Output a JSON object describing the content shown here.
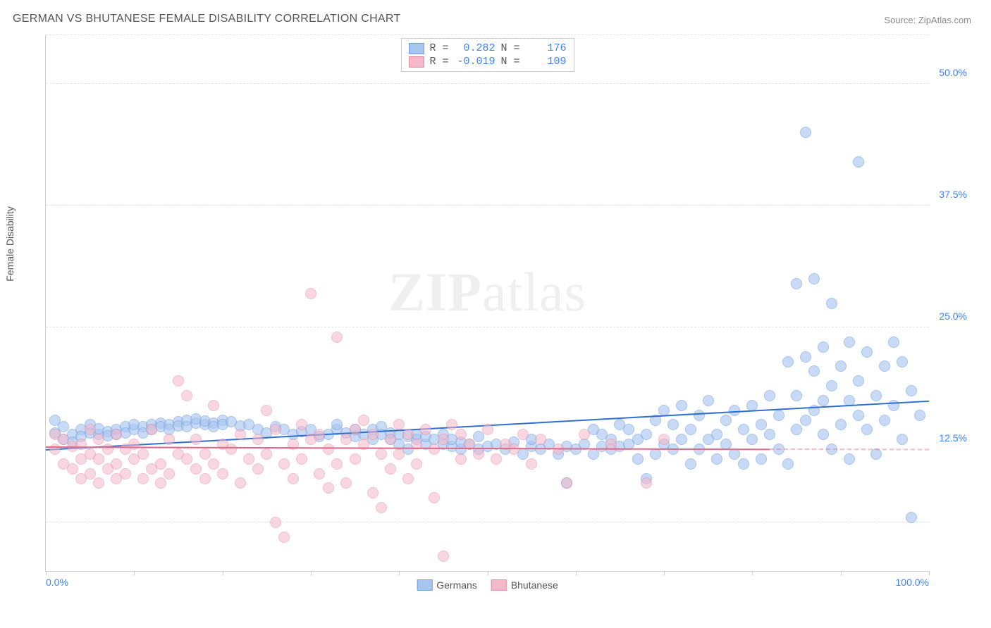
{
  "title": "GERMAN VS BHUTANESE FEMALE DISABILITY CORRELATION CHART",
  "source": "Source: ZipAtlas.com",
  "watermark": {
    "bold": "ZIP",
    "rest": "atlas"
  },
  "chart": {
    "type": "scatter",
    "y_axis_label": "Female Disability",
    "xlim": [
      0,
      100
    ],
    "ylim": [
      0,
      55
    ],
    "x_tick_positions": [
      0,
      10,
      20,
      30,
      40,
      50,
      60,
      70,
      80,
      90,
      100
    ],
    "x_tick_labels": {
      "0": "0.0%",
      "100": "100.0%"
    },
    "y_ticks": [
      {
        "v": 12.5,
        "label": "12.5%"
      },
      {
        "v": 25.0,
        "label": "25.0%"
      },
      {
        "v": 37.5,
        "label": "37.5%"
      },
      {
        "v": 50.0,
        "label": "50.0%"
      }
    ],
    "grid_positions": [
      5,
      12.5,
      25,
      37.5,
      50,
      55
    ],
    "grid_color": "#e5e5e5",
    "background_color": "#ffffff",
    "series": [
      {
        "name": "Germans",
        "marker_fill": "#a8c5f0",
        "marker_stroke": "#6fa0e0",
        "marker_opacity": 0.62,
        "marker_radius": 8,
        "trend": {
          "color": "#2f6fd0",
          "width": 2,
          "y_at_x0": 12.5,
          "y_at_x100": 17.5,
          "solid_until_x": 100
        },
        "stats": {
          "R": "0.282",
          "N": "176"
        },
        "points": [
          [
            1,
            15.5
          ],
          [
            1,
            14.2
          ],
          [
            2,
            13.5
          ],
          [
            2,
            14.8
          ],
          [
            3,
            14.0
          ],
          [
            3,
            13.2
          ],
          [
            4,
            14.5
          ],
          [
            4,
            13.8
          ],
          [
            5,
            14.2
          ],
          [
            5,
            15.0
          ],
          [
            6,
            14.0
          ],
          [
            6,
            14.6
          ],
          [
            7,
            14.3
          ],
          [
            7,
            13.9
          ],
          [
            8,
            14.5
          ],
          [
            8,
            14.0
          ],
          [
            9,
            14.8
          ],
          [
            9,
            14.2
          ],
          [
            10,
            14.5
          ],
          [
            10,
            15.0
          ],
          [
            11,
            14.8
          ],
          [
            11,
            14.2
          ],
          [
            12,
            15.0
          ],
          [
            12,
            14.5
          ],
          [
            13,
            15.2
          ],
          [
            13,
            14.8
          ],
          [
            14,
            15.0
          ],
          [
            14,
            14.5
          ],
          [
            15,
            15.3
          ],
          [
            15,
            14.9
          ],
          [
            16,
            15.5
          ],
          [
            16,
            14.8
          ],
          [
            17,
            15.2
          ],
          [
            17,
            15.6
          ],
          [
            18,
            15.0
          ],
          [
            18,
            15.4
          ],
          [
            19,
            15.2
          ],
          [
            19,
            14.8
          ],
          [
            20,
            15.5
          ],
          [
            20,
            15.0
          ],
          [
            21,
            15.3
          ],
          [
            22,
            14.9
          ],
          [
            23,
            15.0
          ],
          [
            24,
            14.5
          ],
          [
            25,
            14.2
          ],
          [
            26,
            14.8
          ],
          [
            27,
            14.5
          ],
          [
            28,
            14.0
          ],
          [
            29,
            14.3
          ],
          [
            30,
            14.5
          ],
          [
            31,
            13.8
          ],
          [
            32,
            14.0
          ],
          [
            33,
            14.5
          ],
          [
            33,
            15.0
          ],
          [
            34,
            14.2
          ],
          [
            35,
            13.8
          ],
          [
            35,
            14.5
          ],
          [
            36,
            14.0
          ],
          [
            37,
            14.5
          ],
          [
            37,
            13.5
          ],
          [
            38,
            14.8
          ],
          [
            38,
            14.0
          ],
          [
            39,
            13.5
          ],
          [
            39,
            14.2
          ],
          [
            40,
            14.0
          ],
          [
            40,
            13.0
          ],
          [
            41,
            13.8
          ],
          [
            41,
            12.5
          ],
          [
            42,
            13.5
          ],
          [
            42,
            14.0
          ],
          [
            43,
            13.0
          ],
          [
            43,
            13.8
          ],
          [
            44,
            13.5
          ],
          [
            45,
            13.0
          ],
          [
            45,
            14.0
          ],
          [
            46,
            12.8
          ],
          [
            46,
            13.5
          ],
          [
            47,
            12.5
          ],
          [
            47,
            13.2
          ],
          [
            48,
            13.0
          ],
          [
            49,
            12.5
          ],
          [
            49,
            13.8
          ],
          [
            50,
            12.8
          ],
          [
            51,
            13.0
          ],
          [
            52,
            12.5
          ],
          [
            53,
            13.2
          ],
          [
            54,
            12.0
          ],
          [
            55,
            12.8
          ],
          [
            55,
            13.5
          ],
          [
            56,
            12.5
          ],
          [
            57,
            13.0
          ],
          [
            58,
            12.0
          ],
          [
            59,
            12.8
          ],
          [
            59,
            9.0
          ],
          [
            60,
            12.5
          ],
          [
            61,
            13.0
          ],
          [
            62,
            12.0
          ],
          [
            62,
            14.5
          ],
          [
            63,
            12.8
          ],
          [
            63,
            14.0
          ],
          [
            64,
            13.5
          ],
          [
            64,
            12.5
          ],
          [
            65,
            15.0
          ],
          [
            65,
            12.8
          ],
          [
            66,
            13.0
          ],
          [
            66,
            14.5
          ],
          [
            67,
            13.5
          ],
          [
            67,
            11.5
          ],
          [
            68,
            14.0
          ],
          [
            68,
            9.5
          ],
          [
            69,
            12.0
          ],
          [
            69,
            15.5
          ],
          [
            70,
            13.0
          ],
          [
            70,
            16.5
          ],
          [
            71,
            15.0
          ],
          [
            71,
            12.5
          ],
          [
            72,
            13.5
          ],
          [
            72,
            17.0
          ],
          [
            73,
            11.0
          ],
          [
            73,
            14.5
          ],
          [
            74,
            16.0
          ],
          [
            74,
            12.5
          ],
          [
            75,
            13.5
          ],
          [
            75,
            17.5
          ],
          [
            76,
            14.0
          ],
          [
            76,
            11.5
          ],
          [
            77,
            15.5
          ],
          [
            77,
            13.0
          ],
          [
            78,
            16.5
          ],
          [
            78,
            12.0
          ],
          [
            79,
            14.5
          ],
          [
            79,
            11.0
          ],
          [
            80,
            17.0
          ],
          [
            80,
            13.5
          ],
          [
            81,
            15.0
          ],
          [
            81,
            11.5
          ],
          [
            82,
            18.0
          ],
          [
            82,
            14.0
          ],
          [
            83,
            16.0
          ],
          [
            83,
            12.5
          ],
          [
            84,
            21.5
          ],
          [
            84,
            11.0
          ],
          [
            85,
            29.5
          ],
          [
            85,
            14.5
          ],
          [
            85,
            18.0
          ],
          [
            86,
            22.0
          ],
          [
            86,
            15.5
          ],
          [
            86,
            45.0
          ],
          [
            87,
            16.5
          ],
          [
            87,
            30.0
          ],
          [
            87,
            20.5
          ],
          [
            88,
            14.0
          ],
          [
            88,
            23.0
          ],
          [
            88,
            17.5
          ],
          [
            89,
            19.0
          ],
          [
            89,
            12.5
          ],
          [
            89,
            27.5
          ],
          [
            90,
            15.0
          ],
          [
            90,
            21.0
          ],
          [
            91,
            17.5
          ],
          [
            91,
            23.5
          ],
          [
            91,
            11.5
          ],
          [
            92,
            16.0
          ],
          [
            92,
            19.5
          ],
          [
            92,
            42.0
          ],
          [
            93,
            14.5
          ],
          [
            93,
            22.5
          ],
          [
            94,
            18.0
          ],
          [
            94,
            12.0
          ],
          [
            95,
            15.5
          ],
          [
            95,
            21.0
          ],
          [
            96,
            23.5
          ],
          [
            96,
            17.0
          ],
          [
            97,
            13.5
          ],
          [
            97,
            21.5
          ],
          [
            98,
            18.5
          ],
          [
            98,
            5.5
          ],
          [
            99,
            16.0
          ]
        ]
      },
      {
        "name": "Bhutanese",
        "marker_fill": "#f5b8c8",
        "marker_stroke": "#e88aa5",
        "marker_opacity": 0.55,
        "marker_radius": 8,
        "trend": {
          "color": "#e06a8a",
          "width": 2,
          "y_at_x0": 12.8,
          "y_at_x100": 12.5,
          "solid_until_x": 82
        },
        "stats": {
          "R": "-0.019",
          "N": "109"
        },
        "points": [
          [
            1,
            12.5
          ],
          [
            1,
            14.0
          ],
          [
            2,
            11.0
          ],
          [
            2,
            13.5
          ],
          [
            3,
            12.8
          ],
          [
            3,
            10.5
          ],
          [
            4,
            11.5
          ],
          [
            4,
            13.0
          ],
          [
            4,
            9.5
          ],
          [
            5,
            12.0
          ],
          [
            5,
            10.0
          ],
          [
            5,
            14.5
          ],
          [
            6,
            11.5
          ],
          [
            6,
            9.0
          ],
          [
            6,
            13.5
          ],
          [
            7,
            10.5
          ],
          [
            7,
            12.5
          ],
          [
            8,
            11.0
          ],
          [
            8,
            9.5
          ],
          [
            8,
            14.0
          ],
          [
            9,
            10.0
          ],
          [
            9,
            12.5
          ],
          [
            10,
            11.5
          ],
          [
            10,
            13.0
          ],
          [
            11,
            9.5
          ],
          [
            11,
            12.0
          ],
          [
            12,
            10.5
          ],
          [
            12,
            14.5
          ],
          [
            13,
            11.0
          ],
          [
            13,
            9.0
          ],
          [
            14,
            13.5
          ],
          [
            14,
            10.0
          ],
          [
            15,
            12.0
          ],
          [
            15,
            19.5
          ],
          [
            16,
            11.5
          ],
          [
            16,
            18.0
          ],
          [
            17,
            10.5
          ],
          [
            17,
            13.5
          ],
          [
            18,
            12.0
          ],
          [
            18,
            9.5
          ],
          [
            19,
            11.0
          ],
          [
            19,
            17.0
          ],
          [
            20,
            13.0
          ],
          [
            20,
            10.0
          ],
          [
            21,
            12.5
          ],
          [
            22,
            14.0
          ],
          [
            22,
            9.0
          ],
          [
            23,
            11.5
          ],
          [
            24,
            13.5
          ],
          [
            24,
            10.5
          ],
          [
            25,
            12.0
          ],
          [
            25,
            16.5
          ],
          [
            26,
            5.0
          ],
          [
            26,
            14.5
          ],
          [
            27,
            11.0
          ],
          [
            27,
            3.5
          ],
          [
            28,
            13.0
          ],
          [
            28,
            9.5
          ],
          [
            29,
            15.0
          ],
          [
            29,
            11.5
          ],
          [
            30,
            13.5
          ],
          [
            30,
            28.5
          ],
          [
            31,
            10.0
          ],
          [
            31,
            14.0
          ],
          [
            32,
            12.5
          ],
          [
            32,
            8.5
          ],
          [
            33,
            11.0
          ],
          [
            33,
            24.0
          ],
          [
            34,
            13.5
          ],
          [
            34,
            9.0
          ],
          [
            35,
            14.5
          ],
          [
            35,
            11.5
          ],
          [
            36,
            15.5
          ],
          [
            36,
            13.0
          ],
          [
            37,
            8.0
          ],
          [
            37,
            14.0
          ],
          [
            38,
            12.0
          ],
          [
            38,
            6.5
          ],
          [
            39,
            13.5
          ],
          [
            39,
            10.5
          ],
          [
            40,
            15.0
          ],
          [
            40,
            12.0
          ],
          [
            41,
            14.0
          ],
          [
            41,
            9.5
          ],
          [
            42,
            13.0
          ],
          [
            42,
            11.0
          ],
          [
            43,
            14.5
          ],
          [
            44,
            12.5
          ],
          [
            44,
            7.5
          ],
          [
            45,
            13.5
          ],
          [
            45,
            1.5
          ],
          [
            46,
            15.0
          ],
          [
            47,
            11.5
          ],
          [
            47,
            14.0
          ],
          [
            48,
            13.0
          ],
          [
            49,
            12.0
          ],
          [
            50,
            14.5
          ],
          [
            51,
            11.5
          ],
          [
            52,
            13.0
          ],
          [
            53,
            12.5
          ],
          [
            54,
            14.0
          ],
          [
            55,
            11.0
          ],
          [
            56,
            13.5
          ],
          [
            58,
            12.5
          ],
          [
            59,
            9.0
          ],
          [
            61,
            14.0
          ],
          [
            64,
            13.0
          ],
          [
            68,
            9.0
          ],
          [
            70,
            13.5
          ]
        ]
      }
    ],
    "stats_box_labels": {
      "R": "R =",
      "N": "N ="
    },
    "bottom_legend": [
      {
        "label": "Germans",
        "fill": "#a8c5f0",
        "stroke": "#6fa0e0"
      },
      {
        "label": "Bhutanese",
        "fill": "#f5b8c8",
        "stroke": "#e88aa5"
      }
    ]
  }
}
